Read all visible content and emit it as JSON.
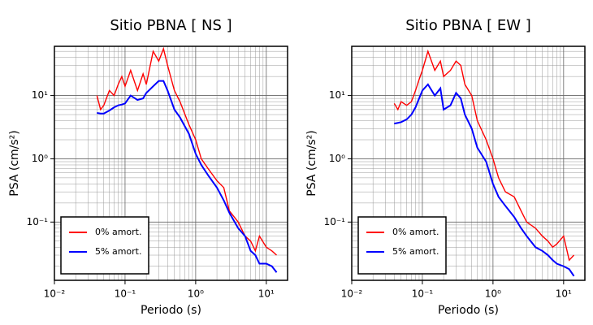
{
  "chart_data": [
    {
      "type": "line",
      "title": "Sitio PBNA [ NS ]",
      "x_label": "Periodo (s)",
      "y_label": "PSA (cm/s²)",
      "xscale": "log",
      "yscale": "log",
      "grid": true,
      "legend": "lower left",
      "xlim": [
        0.01,
        20
      ],
      "ylim": [
        0.012,
        60
      ],
      "xticks": [
        {
          "value": 0.01,
          "label": "10⁻²"
        },
        {
          "value": 0.1,
          "label": "10⁻¹"
        },
        {
          "value": 1,
          "label": "10⁰"
        },
        {
          "value": 10,
          "label": "10¹"
        }
      ],
      "yticks": [
        {
          "value": 0.1,
          "label": "10⁻¹"
        },
        {
          "value": 1,
          "label": "10⁰"
        },
        {
          "value": 10,
          "label": "10¹"
        }
      ],
      "x": [
        0.04,
        0.045,
        0.05,
        0.06,
        0.07,
        0.08,
        0.09,
        0.1,
        0.12,
        0.15,
        0.18,
        0.2,
        0.25,
        0.3,
        0.35,
        0.4,
        0.5,
        0.6,
        0.8,
        1,
        1.2,
        1.5,
        2,
        2.5,
        3,
        4,
        5,
        6,
        7,
        8,
        10,
        12,
        14
      ],
      "series": [
        {
          "name": "0% amort.",
          "color": "#ff0000",
          "values": [
            10,
            6,
            7,
            12,
            10,
            15,
            20,
            14,
            25,
            12,
            22,
            15,
            50,
            35,
            55,
            30,
            12,
            8,
            3.5,
            2,
            1,
            0.7,
            0.45,
            0.35,
            0.15,
            0.1,
            0.06,
            0.05,
            0.035,
            0.06,
            0.04,
            0.035,
            0.03
          ]
        },
        {
          "name": "5% amort.",
          "color": "#0000ff",
          "values": [
            5.3,
            5.2,
            5.2,
            5.8,
            6.5,
            7,
            7.2,
            7.5,
            10,
            8.5,
            9,
            11,
            14,
            17,
            17,
            12,
            6,
            4.5,
            2.5,
            1.2,
            0.8,
            0.55,
            0.35,
            0.22,
            0.14,
            0.08,
            0.06,
            0.035,
            0.03,
            0.022,
            0.022,
            0.02,
            0.016
          ]
        }
      ]
    },
    {
      "type": "line",
      "title": "Sitio PBNA [ EW ]",
      "x_label": "Periodo (s)",
      "y_label": "PSA (cm/s²)",
      "xscale": "log",
      "yscale": "log",
      "grid": true,
      "legend": "lower left",
      "xlim": [
        0.01,
        20
      ],
      "ylim": [
        0.012,
        60
      ],
      "xticks": [
        {
          "value": 0.01,
          "label": "10⁻²"
        },
        {
          "value": 0.1,
          "label": "10⁻¹"
        },
        {
          "value": 1,
          "label": "10⁰"
        },
        {
          "value": 10,
          "label": "10¹"
        }
      ],
      "yticks": [
        {
          "value": 0.1,
          "label": "10⁻¹"
        },
        {
          "value": 1,
          "label": "10⁰"
        },
        {
          "value": 10,
          "label": "10¹"
        }
      ],
      "x": [
        0.04,
        0.045,
        0.05,
        0.06,
        0.07,
        0.08,
        0.09,
        0.1,
        0.12,
        0.15,
        0.18,
        0.2,
        0.25,
        0.3,
        0.35,
        0.4,
        0.5,
        0.6,
        0.8,
        1,
        1.2,
        1.5,
        2,
        2.5,
        3,
        4,
        5,
        6,
        7,
        8,
        10,
        12,
        14
      ],
      "series": [
        {
          "name": "0% amort.",
          "color": "#ff0000",
          "values": [
            7.5,
            6,
            8,
            7,
            8,
            12,
            18,
            25,
            50,
            25,
            35,
            20,
            25,
            35,
            30,
            15,
            10,
            4,
            2,
            1,
            0.5,
            0.3,
            0.25,
            0.15,
            0.1,
            0.08,
            0.06,
            0.05,
            0.04,
            0.045,
            0.06,
            0.025,
            0.03
          ]
        },
        {
          "name": "5% amort.",
          "color": "#0000ff",
          "values": [
            3.6,
            3.7,
            3.8,
            4.2,
            5,
            6.5,
            9,
            12,
            15,
            10,
            13,
            6,
            7,
            11,
            9,
            5,
            3,
            1.5,
            0.9,
            0.4,
            0.25,
            0.18,
            0.12,
            0.08,
            0.06,
            0.04,
            0.035,
            0.03,
            0.025,
            0.022,
            0.02,
            0.018,
            0.014
          ]
        }
      ]
    }
  ]
}
